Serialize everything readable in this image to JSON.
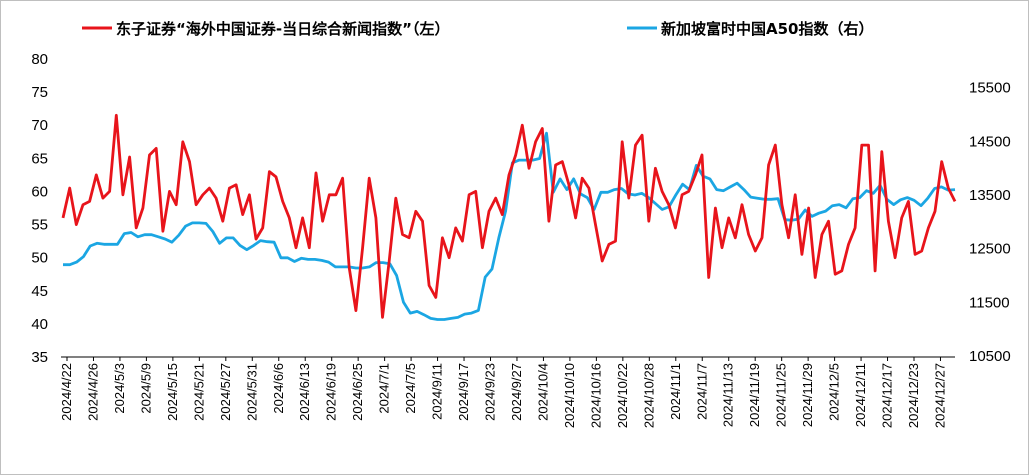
{
  "chart_data": {
    "type": "line",
    "legend_position": "top",
    "grid": false,
    "x_tick_labels": [
      "2024/4/22",
      "2024/4/26",
      "2024/5/3",
      "2024/5/9",
      "2024/5/15",
      "2024/5/21",
      "2024/5/27",
      "2024/5/31",
      "2024/6/6",
      "2024/6/13",
      "2024/6/19",
      "2024/6/25",
      "2024/7/1",
      "2024/7/5",
      "2024/9/11",
      "2024/9/17",
      "2024/9/23",
      "2024/9/27",
      "2024/10/4",
      "2024/10/10",
      "2024/10/16",
      "2024/10/22",
      "2024/10/28",
      "2024/11/1",
      "2024/11/7",
      "2024/11/13",
      "2024/11/19",
      "2024/11/25",
      "2024/11/29",
      "2024/12/5",
      "2024/12/11",
      "2024/12/17",
      "2024/12/23",
      "2024/12/27"
    ],
    "y_left": {
      "ticks": [
        35,
        40,
        45,
        50,
        55,
        60,
        65,
        70,
        75,
        80
      ],
      "range": [
        35,
        80
      ]
    },
    "y_right": {
      "ticks": [
        10500,
        11500,
        12500,
        13500,
        14500,
        15500
      ],
      "range": [
        10500,
        15500
      ]
    },
    "series": [
      {
        "name": "东子证券“海外中国证券-当日综合新闻指数”（左）",
        "axis": "left",
        "color": "#e8141b",
        "values": [
          56,
          60.5,
          55,
          58,
          58.5,
          62.5,
          59,
          60,
          71.5,
          59.5,
          65.2,
          54.5,
          57.5,
          65.5,
          66.5,
          54,
          60,
          58,
          67.5,
          64.5,
          58,
          59.5,
          60.5,
          59,
          55.5,
          60.5,
          61,
          56.5,
          59.5,
          52.8,
          54.5,
          63,
          62.2,
          58.5,
          56,
          51.5,
          56,
          51.5,
          62.8,
          55.5,
          59.5,
          59.5,
          62,
          48.5,
          42,
          51.5,
          62,
          56,
          41,
          49.5,
          59,
          53.5,
          53,
          57,
          55.5,
          45.8,
          44,
          53,
          50,
          54.5,
          52.5,
          59.5,
          60,
          51.5,
          57,
          59,
          56.5,
          62.5,
          65.5,
          70,
          63.5,
          67.5,
          69.5,
          55.5,
          64,
          64.5,
          61,
          56,
          62,
          60.5,
          55,
          49.5,
          52,
          52.5,
          67.5,
          59,
          67,
          68.5,
          55.5,
          63.5,
          60,
          58,
          54.5,
          59.5,
          60,
          62.5,
          65.5,
          47,
          57.5,
          51.5,
          56,
          53,
          58,
          53.5,
          51,
          53,
          64,
          67,
          58,
          53,
          59.5,
          50.5,
          57.5,
          47,
          53.5,
          55.5,
          47.5,
          48,
          52,
          54.5,
          67,
          67,
          48,
          66,
          55.5,
          50,
          56,
          58.5,
          50.5,
          51,
          54.5,
          57,
          64.5,
          60.5,
          58.5
        ]
      },
      {
        "name": "新加坡富时中国A50指数（右）",
        "axis": "right",
        "color": "#1ba6e3",
        "values": [
          12200,
          12200,
          12250,
          12350,
          12550,
          12600,
          12580,
          12580,
          12580,
          12780,
          12800,
          12720,
          12760,
          12760,
          12720,
          12680,
          12620,
          12750,
          12920,
          12980,
          12980,
          12970,
          12820,
          12600,
          12700,
          12700,
          12560,
          12480,
          12560,
          12650,
          12630,
          12620,
          12330,
          12330,
          12260,
          12320,
          12300,
          12300,
          12280,
          12250,
          12160,
          12160,
          12160,
          12140,
          12140,
          12160,
          12240,
          12240,
          12220,
          12000,
          11500,
          11300,
          11330,
          11270,
          11200,
          11180,
          11180,
          11200,
          11220,
          11280,
          11300,
          11350,
          11970,
          12120,
          12700,
          13200,
          14100,
          14150,
          14150,
          14150,
          14180,
          14650,
          13550,
          13800,
          13600,
          13800,
          13520,
          13450,
          13230,
          13550,
          13550,
          13600,
          13620,
          13520,
          13500,
          13530,
          13450,
          13340,
          13230,
          13280,
          13500,
          13700,
          13600,
          14050,
          13850,
          13800,
          13600,
          13580,
          13650,
          13720,
          13600,
          13460,
          13440,
          13420,
          13420,
          13430,
          13040,
          13030,
          13050,
          13220,
          13100,
          13160,
          13200,
          13300,
          13320,
          13260,
          13430,
          13450,
          13580,
          13530,
          13680,
          13420,
          13320,
          13410,
          13450,
          13400,
          13300,
          13440,
          13620,
          13650,
          13590,
          13600
        ]
      }
    ]
  },
  "colors": {
    "left_series": "#e8141b",
    "right_series": "#1ba6e3",
    "axis": "#000000",
    "border": "#bfbfbf"
  }
}
